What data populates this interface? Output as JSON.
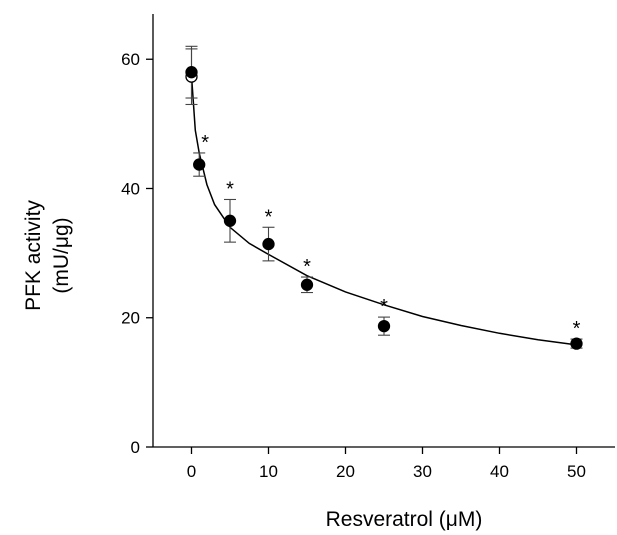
{
  "chart_data": {
    "type": "scatter",
    "title": "",
    "xlabel": "Resveratrol (μM)",
    "ylabel": [
      "PFK activity",
      "(mU/μg)"
    ],
    "xlim": [
      -5,
      55
    ],
    "ylim": [
      0,
      67
    ],
    "x_ticks": [
      0,
      10,
      20,
      30,
      40,
      50
    ],
    "y_ticks": [
      0,
      20,
      40,
      60
    ],
    "grid": false,
    "legend": "none",
    "series": [
      {
        "name": "",
        "marker": "filled-circle",
        "color": "#000000",
        "points": [
          {
            "x": 0,
            "y": 58,
            "err": 4,
            "sig": ""
          },
          {
            "x": 1,
            "y": 43.7,
            "err": 1.8,
            "sig": "*"
          },
          {
            "x": 5,
            "y": 35,
            "err": 3.3,
            "sig": "*"
          },
          {
            "x": 10,
            "y": 31.4,
            "err": 2.6,
            "sig": "*"
          },
          {
            "x": 15,
            "y": 25.1,
            "err": 1.2,
            "sig": "*"
          },
          {
            "x": 25,
            "y": 18.7,
            "err": 1.4,
            "sig": "*"
          },
          {
            "x": 50,
            "y": 16,
            "err": 0.7,
            "sig": "*"
          }
        ]
      },
      {
        "name": "",
        "marker": "open-circle",
        "color": "#000000",
        "points": [
          {
            "x": 0,
            "y": 57.3,
            "err": 4.3,
            "sig": ""
          }
        ]
      }
    ],
    "fit_curve": {
      "type": "hyperbolic-decay",
      "x": [
        0,
        0.5,
        1,
        2,
        3,
        5,
        7.5,
        10,
        15,
        20,
        25,
        30,
        35,
        40,
        45,
        50
      ],
      "y": [
        57.5,
        49.0,
        45.5,
        40.6,
        37.5,
        34.0,
        31.5,
        29.8,
        26.5,
        24.0,
        22.0,
        20.2,
        18.8,
        17.6,
        16.6,
        15.8
      ]
    }
  }
}
